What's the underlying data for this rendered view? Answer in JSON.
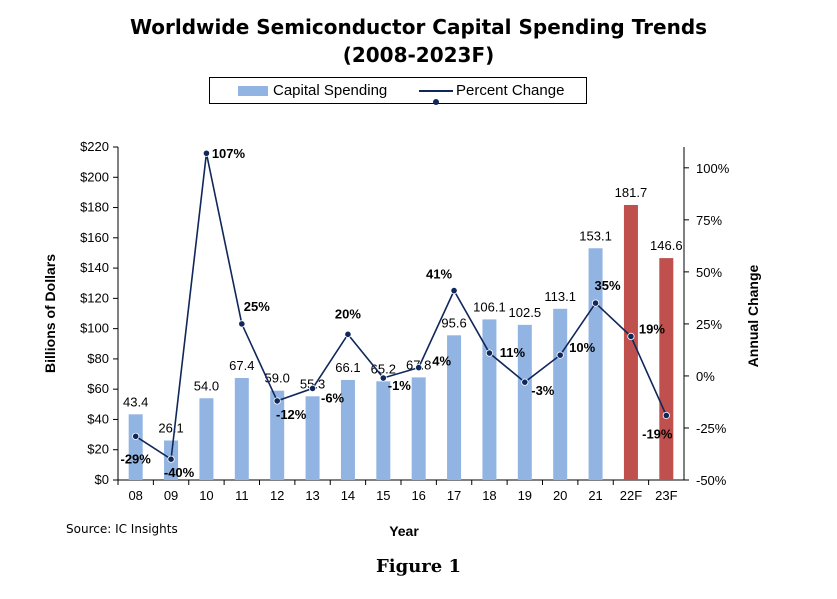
{
  "chart_data": {
    "type": "bar",
    "title": "Worldwide Semiconductor Capital Spending Trends",
    "subtitle": "(2008-2023F)",
    "xlabel": "Year",
    "ylabel": "Billions of Dollars",
    "y2label": "Annual Change",
    "categories": [
      "08",
      "09",
      "10",
      "11",
      "12",
      "13",
      "14",
      "15",
      "16",
      "17",
      "18",
      "19",
      "20",
      "21",
      "22F",
      "23F"
    ],
    "ylim": [
      0,
      220
    ],
    "y2lim": [
      -50,
      110
    ],
    "y_ticks": [
      "$0",
      "$20",
      "$40",
      "$60",
      "$80",
      "$100",
      "$120",
      "$140",
      "$160",
      "$180",
      "$200",
      "$220"
    ],
    "y2_ticks": [
      "-50%",
      "-25%",
      "0%",
      "25%",
      "50%",
      "75%",
      "100%"
    ],
    "legend_position": "top-center",
    "series": [
      {
        "name": "Capital Spending",
        "type": "bar",
        "axis": "left",
        "values": [
          43.4,
          26.1,
          54.0,
          67.4,
          59.0,
          55.3,
          66.1,
          65.2,
          67.8,
          95.6,
          106.1,
          102.5,
          113.1,
          153.1,
          181.7,
          146.6
        ],
        "labels": [
          "43.4",
          "26.1",
          "54.0",
          "67.4",
          "59.0",
          "55.3",
          "66.1",
          "65.2",
          "67.8",
          "95.6",
          "106.1",
          "102.5",
          "113.1",
          "153.1",
          "181.7",
          "146.6"
        ],
        "color": "#92b4e3",
        "forecast_color": "#c0504d"
      },
      {
        "name": "Percent Change",
        "type": "line",
        "axis": "right",
        "values": [
          -29,
          -40,
          107,
          25,
          -12,
          -6,
          20,
          -1,
          4,
          41,
          11,
          -3,
          10,
          35,
          19,
          -19
        ],
        "labels": [
          "-29%",
          "-40%",
          "107%",
          "25%",
          "-12%",
          "-6%",
          "20%",
          "-1%",
          "4%",
          "41%",
          "11%",
          "-3%",
          "10%",
          "35%",
          "19%",
          "-19%"
        ],
        "color": "#10275a"
      }
    ],
    "label_offsets": [
      [
        0,
        22
      ],
      [
        8,
        13
      ],
      [
        22,
        0
      ],
      [
        15,
        -18
      ],
      [
        14,
        13
      ],
      [
        20,
        9
      ],
      [
        0,
        -21
      ],
      [
        16,
        7
      ],
      [
        23,
        -7
      ],
      [
        -15,
        -17
      ],
      [
        23,
        -1
      ],
      [
        18,
        8
      ],
      [
        22,
        -8
      ],
      [
        12,
        -18
      ],
      [
        21,
        -8
      ],
      [
        -9,
        18
      ]
    ],
    "source": "Source: IC Insights",
    "figure_caption": "Figure 1"
  }
}
